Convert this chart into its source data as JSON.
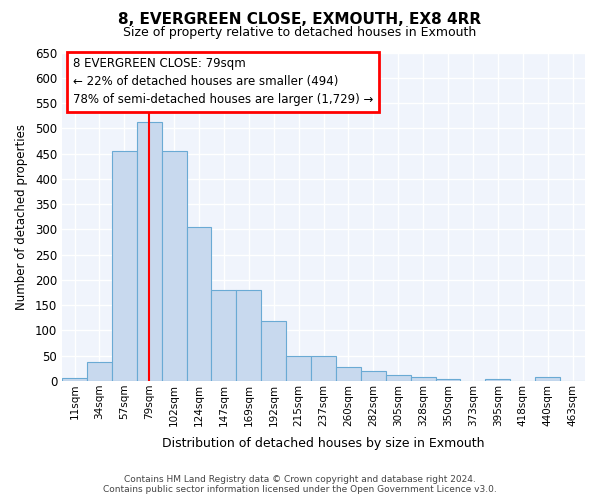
{
  "title": "8, EVERGREEN CLOSE, EXMOUTH, EX8 4RR",
  "subtitle": "Size of property relative to detached houses in Exmouth",
  "xlabel": "Distribution of detached houses by size in Exmouth",
  "ylabel": "Number of detached properties",
  "categories": [
    "11sqm",
    "34sqm",
    "57sqm",
    "79sqm",
    "102sqm",
    "124sqm",
    "147sqm",
    "169sqm",
    "192sqm",
    "215sqm",
    "237sqm",
    "260sqm",
    "282sqm",
    "305sqm",
    "328sqm",
    "350sqm",
    "373sqm",
    "395sqm",
    "418sqm",
    "440sqm",
    "463sqm"
  ],
  "values": [
    5,
    37,
    455,
    512,
    456,
    305,
    180,
    180,
    118,
    50,
    50,
    27,
    20,
    12,
    8,
    3,
    0,
    3,
    0,
    7,
    0
  ],
  "bar_color": "#c8d9ee",
  "bar_edge_color": "#6aaad4",
  "red_line_index": 3,
  "ylim": [
    0,
    650
  ],
  "yticks": [
    0,
    50,
    100,
    150,
    200,
    250,
    300,
    350,
    400,
    450,
    500,
    550,
    600,
    650
  ],
  "annotation_line1": "8 EVERGREEN CLOSE: 79sqm",
  "annotation_line2": "← 22% of detached houses are smaller (494)",
  "annotation_line3": "78% of semi-detached houses are larger (1,729) →",
  "figure_bg": "#ffffff",
  "axes_bg": "#f0f4fc",
  "grid_color": "#ffffff",
  "footer_line1": "Contains HM Land Registry data © Crown copyright and database right 2024.",
  "footer_line2": "Contains public sector information licensed under the Open Government Licence v3.0."
}
